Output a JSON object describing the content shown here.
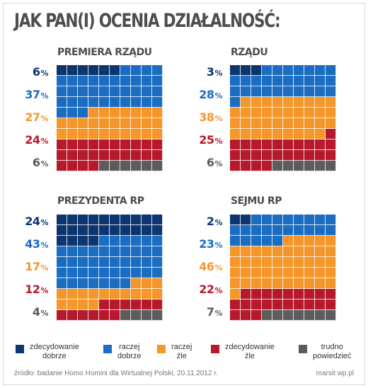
{
  "title": "JAK PAN(I) OCENIA DZIAŁALNOŚĆ:",
  "colors": {
    "zdecydowanie_dobrze": "#0d3570",
    "raczej_dobrze": "#1b6dc1",
    "raczej_zle": "#f5962a",
    "zdecydowanie_zle": "#b5192b",
    "trudno_powiedziec": "#5c5c5c"
  },
  "chart_data": [
    {
      "type": "waffle",
      "title": "PREMIERA RZĄDU",
      "categories": [
        "zdecydowanie dobrze",
        "raczej dobrze",
        "raczej źle",
        "zdecydowanie źle",
        "trudno powiedzieć"
      ],
      "values": [
        6,
        37,
        27,
        24,
        6
      ],
      "labels": [
        "6",
        "37",
        "27",
        "24",
        "6"
      ]
    },
    {
      "type": "waffle",
      "title": "RZĄDU",
      "categories": [
        "zdecydowanie dobrze",
        "raczej dobrze",
        "raczej źle",
        "zdecydowanie źle",
        "trudno powiedzieć"
      ],
      "values": [
        3,
        28,
        38,
        25,
        6
      ],
      "labels": [
        "3",
        "28",
        "38",
        "25",
        "6"
      ]
    },
    {
      "type": "waffle",
      "title": "PREZYDENTA RP",
      "categories": [
        "zdecydowanie dobrze",
        "raczej dobrze",
        "raczej źle",
        "zdecydowanie źle",
        "trudno powiedzieć"
      ],
      "values": [
        24,
        43,
        17,
        12,
        4
      ],
      "labels": [
        "24",
        "43",
        "17",
        "12",
        "4"
      ]
    },
    {
      "type": "waffle",
      "title": "SEJMU RP",
      "categories": [
        "zdecydowanie dobrze",
        "raczej dobrze",
        "raczej źle",
        "zdecydowanie źle",
        "trudno powiedzieć"
      ],
      "values": [
        2,
        23,
        46,
        22,
        7
      ],
      "labels": [
        "2",
        "23",
        "46",
        "22",
        "7"
      ]
    }
  ],
  "percent_sign": "%",
  "legend": [
    {
      "label": "zdecydowanie\ndobrze",
      "color": "#0d3570"
    },
    {
      "label": "raczej\ndobrze",
      "color": "#1b6dc1"
    },
    {
      "label": "raczej\nźle",
      "color": "#f5962a"
    },
    {
      "label": "zdecydowanie\nźle",
      "color": "#b5192b"
    },
    {
      "label": "trudno\npowiedzieć",
      "color": "#5c5c5c"
    }
  ],
  "source": "źródło: badanie Homo Homini dla Wirtualnej Polski, 20.11.2012 r.",
  "credit": "marsit wp.pl"
}
